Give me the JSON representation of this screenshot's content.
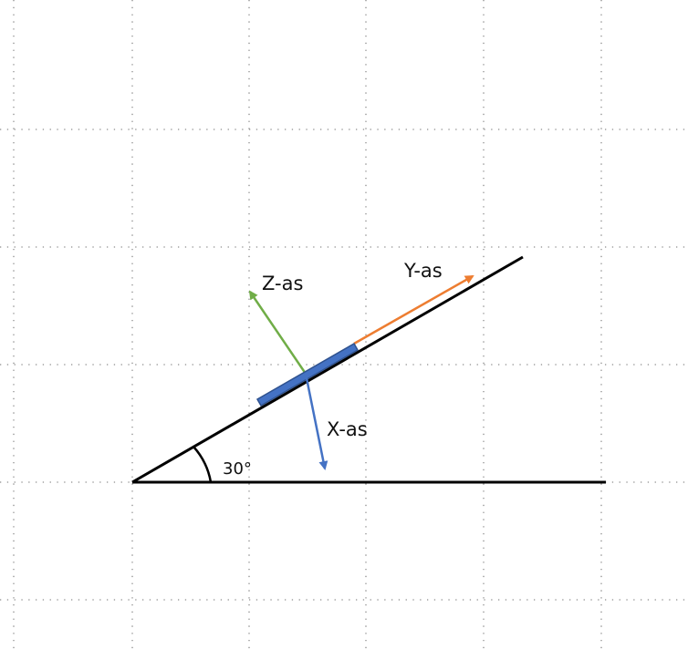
{
  "diagram": {
    "angle_label": "30°",
    "axes": {
      "x": {
        "label": "X-as",
        "color": "#4472c4"
      },
      "y": {
        "label": "Y-as",
        "color": "#ed7d31"
      },
      "z": {
        "label": "Z-as",
        "color": "#70ad47"
      }
    },
    "block_color": "#4472c4",
    "line_color": "#000000",
    "grid_color": "#8c8c8c"
  }
}
